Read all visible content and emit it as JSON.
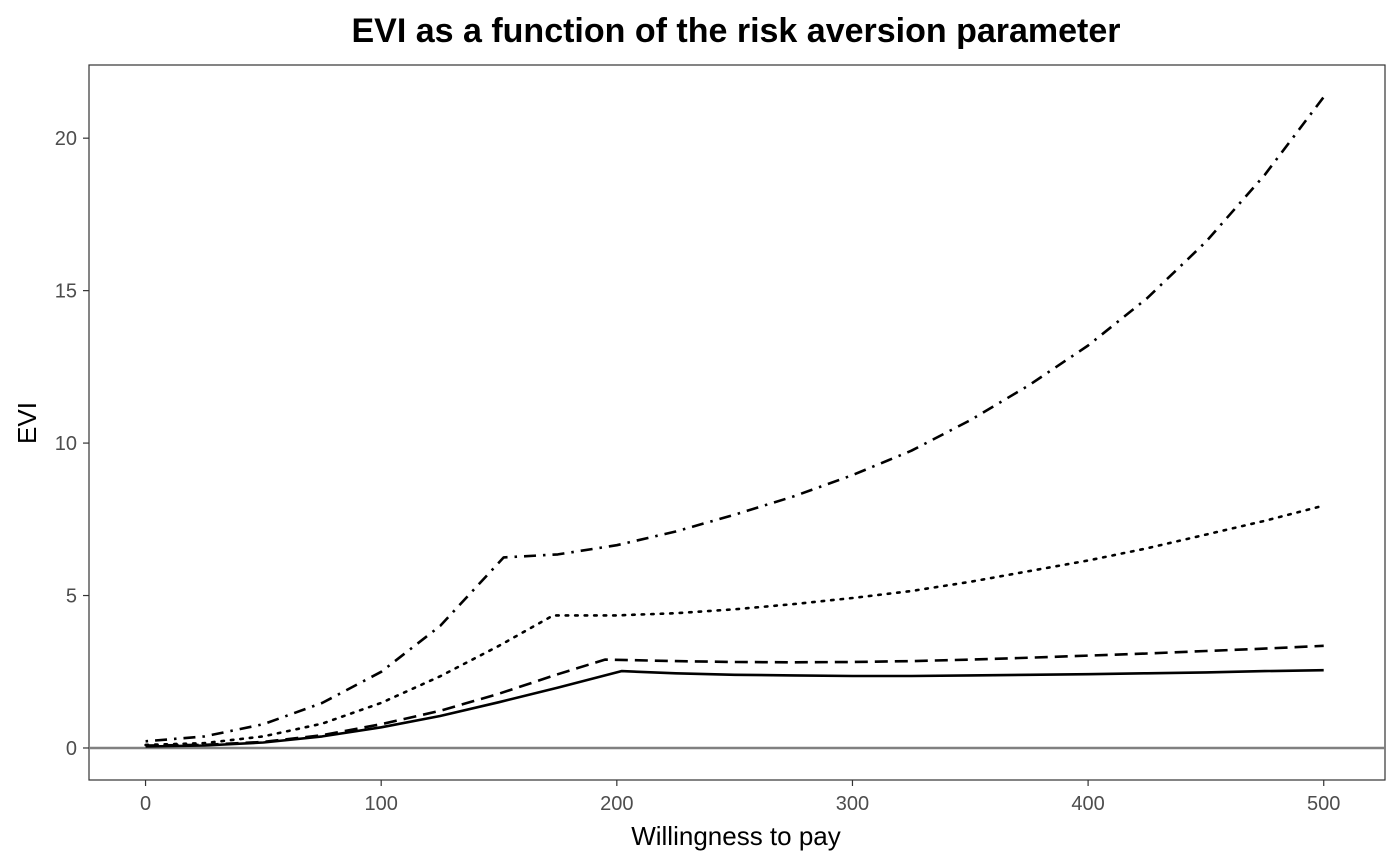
{
  "chart_data": {
    "type": "line",
    "title": "EVI as a function of the risk aversion parameter",
    "xlabel": "Willingness to pay",
    "ylabel": "EVI",
    "xlim": [
      -24,
      526
    ],
    "ylim": [
      -1.05,
      22.4
    ],
    "x_ticks": [
      0,
      100,
      200,
      300,
      400,
      500
    ],
    "y_ticks": [
      0,
      5,
      10,
      15,
      20
    ],
    "grid": false,
    "legend": "none",
    "reference_line": {
      "y": 0,
      "color": "#808080"
    },
    "series": [
      {
        "line_style": "solid",
        "x": [
          0,
          25,
          50,
          75,
          100,
          125,
          150,
          175,
          202,
          225,
          250,
          275,
          300,
          325,
          350,
          375,
          400,
          425,
          450,
          475,
          500
        ],
        "y": [
          0.05,
          0.08,
          0.18,
          0.38,
          0.68,
          1.05,
          1.5,
          1.98,
          2.52,
          2.45,
          2.4,
          2.38,
          2.36,
          2.36,
          2.38,
          2.4,
          2.42,
          2.45,
          2.48,
          2.52,
          2.55
        ]
      },
      {
        "line_style": "dashed",
        "x": [
          0,
          25,
          50,
          75,
          100,
          125,
          150,
          175,
          195,
          225,
          250,
          275,
          300,
          325,
          350,
          375,
          400,
          425,
          450,
          475,
          500
        ],
        "y": [
          0.08,
          0.1,
          0.2,
          0.42,
          0.78,
          1.22,
          1.78,
          2.42,
          2.9,
          2.85,
          2.82,
          2.81,
          2.82,
          2.85,
          2.9,
          2.96,
          3.03,
          3.1,
          3.18,
          3.26,
          3.35
        ]
      },
      {
        "line_style": "dotted",
        "x": [
          0,
          25,
          50,
          75,
          100,
          125,
          150,
          173,
          200,
          225,
          250,
          275,
          300,
          325,
          350,
          375,
          400,
          425,
          450,
          475,
          500
        ],
        "y": [
          0.1,
          0.16,
          0.38,
          0.8,
          1.48,
          2.35,
          3.35,
          4.35,
          4.35,
          4.42,
          4.55,
          4.72,
          4.92,
          5.15,
          5.45,
          5.8,
          6.15,
          6.55,
          7.0,
          7.45,
          7.95
        ]
      },
      {
        "line_style": "dotdash",
        "x": [
          0,
          25,
          50,
          75,
          100,
          125,
          152,
          175,
          200,
          225,
          250,
          275,
          300,
          325,
          350,
          375,
          400,
          425,
          450,
          475,
          500
        ],
        "y": [
          0.22,
          0.38,
          0.78,
          1.48,
          2.5,
          4.0,
          6.25,
          6.35,
          6.65,
          7.1,
          7.65,
          8.25,
          8.95,
          9.75,
          10.75,
          11.9,
          13.2,
          14.75,
          16.6,
          18.8,
          21.35
        ]
      }
    ]
  }
}
